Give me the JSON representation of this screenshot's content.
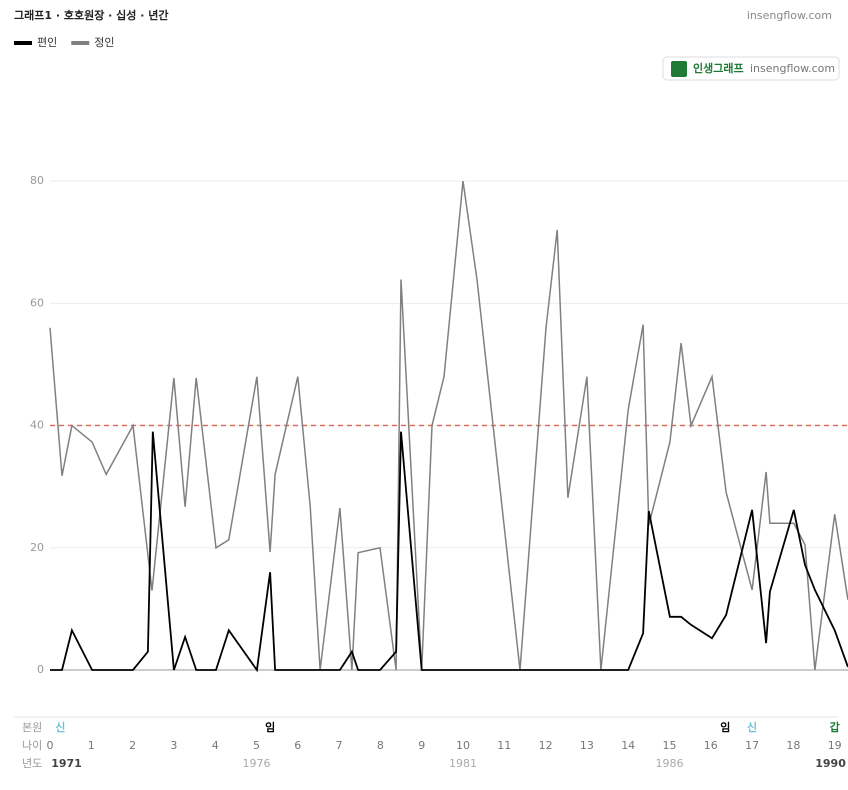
{
  "chart_data": {
    "type": "line",
    "title": "그래프1 · 호호원장 · 십성 · 년간",
    "site": "insengflow.com",
    "badge": {
      "name": "인생그래프",
      "site": "insengflow.com"
    },
    "xlim": [
      0,
      19.32
    ],
    "ylim": [
      0,
      90
    ],
    "yticks": [
      0,
      20,
      40,
      60,
      80
    ],
    "grid": true,
    "threshold": {
      "value": 40,
      "color": "#d9705f"
    },
    "series": [
      {
        "name": "편인",
        "color": "#000000",
        "x": [
          0,
          0.29,
          0.53,
          1.02,
          2.01,
          2.37,
          2.49,
          3.0,
          3.27,
          3.54,
          4.02,
          4.33,
          5.01,
          5.33,
          5.45,
          7.02,
          7.31,
          7.46,
          7.99,
          8.38,
          8.5,
          9.0,
          14.0,
          14.36,
          14.5,
          15.01,
          15.28,
          15.52,
          16.03,
          16.37,
          17.0,
          17.34,
          17.43,
          18.01,
          18.28,
          18.52,
          19.0,
          19.32
        ],
        "values": [
          0,
          0,
          6.5,
          0,
          0,
          3,
          39,
          0,
          5.4,
          0,
          0,
          6.5,
          0,
          16,
          0,
          0,
          3,
          0,
          0,
          3,
          39,
          0,
          0,
          6,
          26,
          8.7,
          8.7,
          7.4,
          5.2,
          9,
          26.2,
          4.4,
          12.8,
          26.2,
          17.2,
          13.1,
          6.5,
          0.5
        ]
      },
      {
        "name": "정인",
        "color": "#808080",
        "x": [
          0,
          0.29,
          0.53,
          1.02,
          1.36,
          2.01,
          2.47,
          3.0,
          3.27,
          3.54,
          4.02,
          4.33,
          5.01,
          5.33,
          5.45,
          6.0,
          6.3,
          6.54,
          7.02,
          7.31,
          7.46,
          7.99,
          8.38,
          8.5,
          9.0,
          9.25,
          9.54,
          10.0,
          10.34,
          11.38,
          12.01,
          12.28,
          12.54,
          13.0,
          13.34,
          14.0,
          14.36,
          14.5,
          15.01,
          15.28,
          15.52,
          16.03,
          16.37,
          17.0,
          17.34,
          17.43,
          18.01,
          18.28,
          18.52,
          19.0,
          19.32
        ],
        "values": [
          56,
          31.8,
          40,
          37.3,
          32,
          40,
          13,
          47.8,
          26.7,
          47.8,
          20,
          21.3,
          48,
          19.3,
          32,
          48,
          26.8,
          0,
          26.5,
          0,
          19.2,
          20,
          0,
          63.9,
          0,
          40,
          48,
          80,
          63.9,
          0,
          56,
          72,
          28.2,
          48,
          0,
          42.6,
          56.5,
          23.7,
          37.3,
          53.5,
          40,
          48,
          29.1,
          13.1,
          32.4,
          24,
          24,
          20.5,
          0,
          25.5,
          11.5
        ]
      }
    ],
    "row_labels": [
      "본원",
      "나이",
      "년도"
    ],
    "pillars": [
      {
        "x": 0.25,
        "label": "신",
        "color": "#6cc3d5"
      },
      {
        "x": 5.33,
        "label": "임",
        "color": "#000000"
      },
      {
        "x": 16.35,
        "label": "임",
        "color": "#000000"
      },
      {
        "x": 17.0,
        "label": "신",
        "color": "#6cc3d5"
      },
      {
        "x": 19.0,
        "label": "갑",
        "color": "#1e7a34"
      }
    ],
    "xticks": [
      0,
      1,
      2,
      3,
      4,
      5,
      6,
      7,
      8,
      9,
      10,
      11,
      12,
      13,
      14,
      15,
      16,
      17,
      18,
      19
    ],
    "years": [
      {
        "value": 0.4,
        "label": "1971"
      },
      {
        "value": 5,
        "label": "1976"
      },
      {
        "value": 10,
        "label": "1981"
      },
      {
        "value": 15,
        "label": "1986"
      },
      {
        "value": 18.9,
        "label": "1990"
      }
    ]
  }
}
